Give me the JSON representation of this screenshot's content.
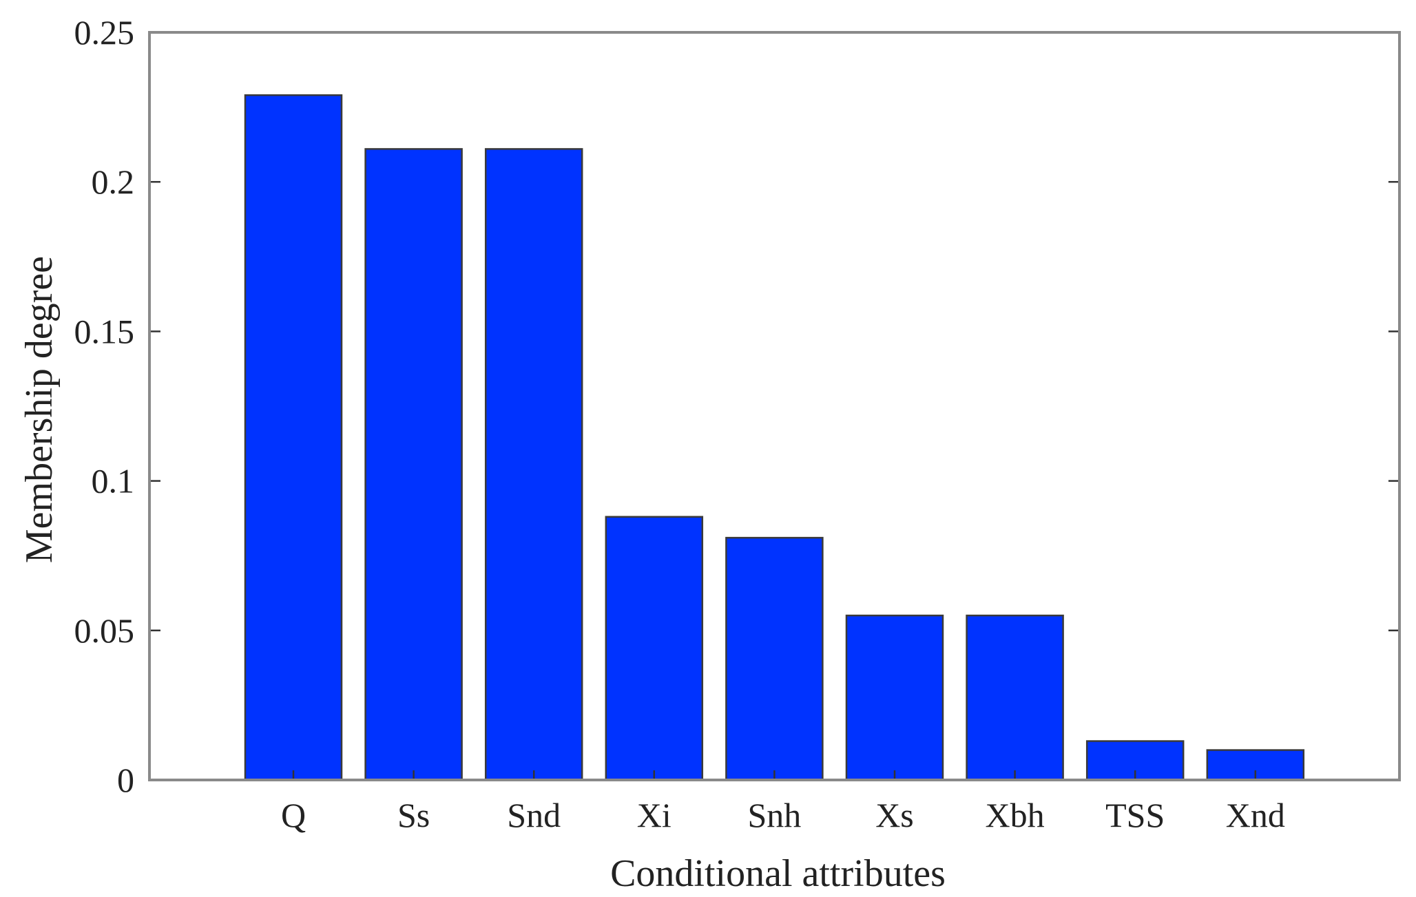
{
  "chart_data": {
    "type": "bar",
    "title": "",
    "xlabel": "Conditional attributes",
    "ylabel": "Membership degree",
    "categories": [
      "Q",
      "Ss",
      "Snd",
      "Xi",
      "Snh",
      "Xs",
      "Xbh",
      "TSS",
      "Xnd"
    ],
    "values": [
      0.229,
      0.211,
      0.211,
      0.088,
      0.081,
      0.055,
      0.055,
      0.013,
      0.01
    ],
    "ylim": [
      0,
      0.25
    ],
    "yticks": [
      0,
      0.05,
      0.1,
      0.15,
      0.2,
      0.25
    ],
    "ytick_labels": [
      "0",
      "0.05",
      "0.1",
      "0.15",
      "0.2",
      "0.25"
    ],
    "bar_color": "#0033ff",
    "grid": false,
    "legend": "none"
  }
}
